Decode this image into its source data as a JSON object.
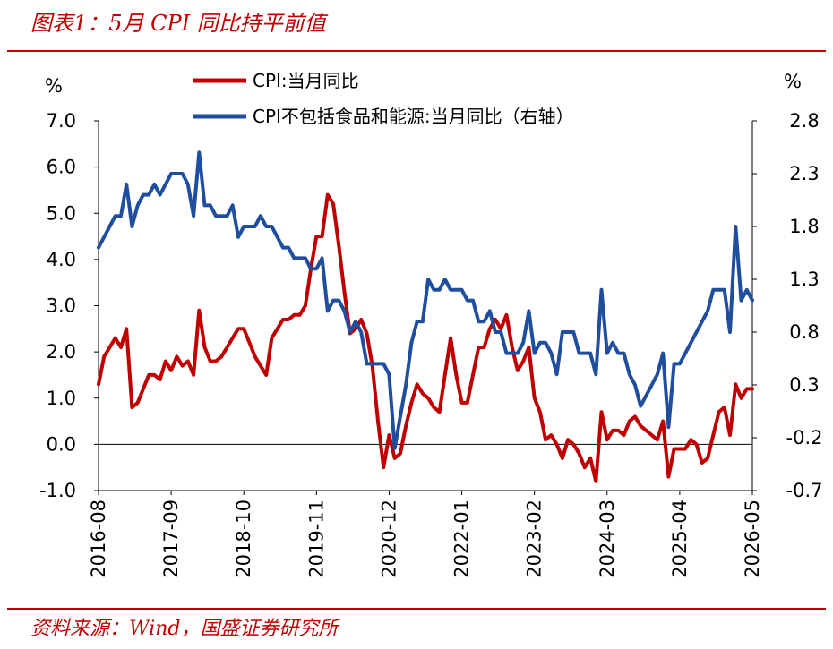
{
  "header": {
    "title": "图表1：5月 CPI 同比持平前值"
  },
  "footer": {
    "source": "资料来源：Wind，国盛证券研究所"
  },
  "chart_data": {
    "type": "line",
    "title": "图表1：5月 CPI 同比持平前值",
    "ylabel_left": "%",
    "ylabel_right": "%",
    "ylim_left": [
      -1.0,
      7.0
    ],
    "ylim_right": [
      -0.7,
      2.8
    ],
    "yticks_left": [
      "7.0",
      "6.0",
      "5.0",
      "4.0",
      "3.0",
      "2.0",
      "1.0",
      "0.0",
      "-1.0"
    ],
    "yticks_right": [
      "2.8",
      "2.3",
      "1.8",
      "1.3",
      "0.8",
      "0.3",
      "-0.2",
      "-0.7"
    ],
    "xticks": [
      "2016-08",
      "2017-09",
      "2018-10",
      "2019-11",
      "2020-12",
      "2022-01",
      "2023-02",
      "2024-03",
      "2025-04",
      "2026-05"
    ],
    "x": [
      "2016-08",
      "2016-09",
      "2016-10",
      "2016-11",
      "2016-12",
      "2017-01",
      "2017-02",
      "2017-03",
      "2017-04",
      "2017-05",
      "2017-06",
      "2017-07",
      "2017-08",
      "2017-09",
      "2017-10",
      "2017-11",
      "2017-12",
      "2018-01",
      "2018-02",
      "2018-03",
      "2018-04",
      "2018-05",
      "2018-06",
      "2018-07",
      "2018-08",
      "2018-09",
      "2018-10",
      "2018-11",
      "2018-12",
      "2019-01",
      "2019-02",
      "2019-03",
      "2019-04",
      "2019-05",
      "2019-06",
      "2019-07",
      "2019-08",
      "2019-09",
      "2019-10",
      "2019-11",
      "2019-12",
      "2020-01",
      "2020-02",
      "2020-03",
      "2020-04",
      "2020-05",
      "2020-06",
      "2020-07",
      "2020-08",
      "2020-09",
      "2020-10",
      "2020-11",
      "2020-12",
      "2021-01",
      "2021-02",
      "2021-03",
      "2021-04",
      "2021-05",
      "2021-06",
      "2021-07",
      "2021-08",
      "2021-09",
      "2021-10",
      "2021-11",
      "2021-12",
      "2022-01",
      "2022-02",
      "2022-03",
      "2022-04",
      "2022-05",
      "2022-06",
      "2022-07",
      "2022-08",
      "2022-09",
      "2022-10",
      "2022-11",
      "2022-12",
      "2023-01",
      "2023-02",
      "2023-03",
      "2023-04",
      "2023-05",
      "2023-06",
      "2023-07",
      "2023-08",
      "2023-09",
      "2023-10",
      "2023-11",
      "2023-12",
      "2024-01",
      "2024-02",
      "2024-03",
      "2024-04",
      "2024-05",
      "2024-06",
      "2024-07",
      "2024-08",
      "2024-09",
      "2024-10",
      "2024-11",
      "2024-12",
      "2025-01",
      "2025-02",
      "2025-03",
      "2025-04",
      "2025-05",
      "2025-06",
      "2025-07",
      "2025-08",
      "2025-09",
      "2025-10",
      "2025-11",
      "2025-12",
      "2026-01",
      "2026-02",
      "2026-03",
      "2026-04",
      "2026-05"
    ],
    "series": [
      {
        "name": "CPI:当月同比",
        "axis": "left",
        "color": "#c00000",
        "values": [
          1.3,
          1.9,
          2.1,
          2.3,
          2.1,
          2.5,
          0.8,
          0.9,
          1.2,
          1.5,
          1.5,
          1.4,
          1.8,
          1.6,
          1.9,
          1.7,
          1.8,
          1.5,
          2.9,
          2.1,
          1.8,
          1.8,
          1.9,
          2.1,
          2.3,
          2.5,
          2.5,
          2.2,
          1.9,
          1.7,
          1.5,
          2.3,
          2.5,
          2.7,
          2.7,
          2.8,
          2.8,
          3.0,
          3.8,
          4.5,
          4.5,
          5.4,
          5.2,
          4.3,
          3.3,
          2.4,
          2.5,
          2.7,
          2.4,
          1.7,
          0.5,
          -0.5,
          0.2,
          -0.3,
          -0.2,
          0.4,
          0.9,
          1.3,
          1.1,
          1.0,
          0.8,
          0.7,
          1.5,
          2.3,
          1.5,
          0.9,
          0.9,
          1.5,
          2.1,
          2.1,
          2.5,
          2.7,
          2.5,
          2.8,
          2.1,
          1.6,
          1.8,
          2.1,
          1.0,
          0.7,
          0.1,
          0.2,
          0.0,
          -0.3,
          0.1,
          0.0,
          -0.2,
          -0.5,
          -0.3,
          -0.8,
          0.7,
          0.1,
          0.3,
          0.3,
          0.2,
          0.5,
          0.6,
          0.4,
          0.3,
          0.2,
          0.1,
          0.5,
          -0.7,
          -0.1,
          -0.1,
          -0.1,
          0.1,
          0.0,
          -0.4,
          -0.3,
          0.2,
          0.7,
          0.8,
          0.2,
          1.3,
          1.0,
          1.2,
          1.2
        ]
      },
      {
        "name": "CPI不包括食品和能源:当月同比（右轴）",
        "axis": "right",
        "color": "#1f4e9e",
        "values": [
          1.6,
          1.7,
          1.8,
          1.9,
          1.9,
          2.2,
          1.8,
          2.0,
          2.1,
          2.1,
          2.2,
          2.1,
          2.2,
          2.3,
          2.3,
          2.3,
          2.2,
          1.9,
          2.5,
          2.0,
          2.0,
          1.9,
          1.9,
          1.9,
          2.0,
          1.7,
          1.8,
          1.8,
          1.8,
          1.9,
          1.8,
          1.8,
          1.7,
          1.6,
          1.6,
          1.5,
          1.5,
          1.5,
          1.4,
          1.4,
          1.5,
          1.0,
          1.1,
          1.1,
          1.0,
          0.8,
          0.9,
          0.8,
          0.5,
          0.5,
          0.5,
          0.5,
          0.4,
          -0.3,
          0.0,
          0.3,
          0.7,
          0.9,
          0.9,
          1.3,
          1.2,
          1.2,
          1.3,
          1.2,
          1.2,
          1.2,
          1.1,
          1.1,
          0.9,
          0.9,
          1.0,
          0.8,
          0.8,
          0.6,
          0.6,
          0.6,
          0.7,
          1.0,
          0.6,
          0.7,
          0.7,
          0.6,
          0.4,
          0.8,
          0.8,
          0.8,
          0.6,
          0.6,
          0.6,
          0.4,
          1.2,
          0.6,
          0.7,
          0.6,
          0.6,
          0.4,
          0.3,
          0.1,
          0.2,
          0.3,
          0.4,
          0.6,
          -0.1,
          0.5,
          0.5,
          0.6,
          0.7,
          0.8,
          0.9,
          1.0,
          1.2,
          1.2,
          1.2,
          0.8,
          1.8,
          1.1,
          1.2,
          1.1
        ]
      }
    ],
    "legend": "top",
    "grid": false,
    "baseline": 0.0
  }
}
